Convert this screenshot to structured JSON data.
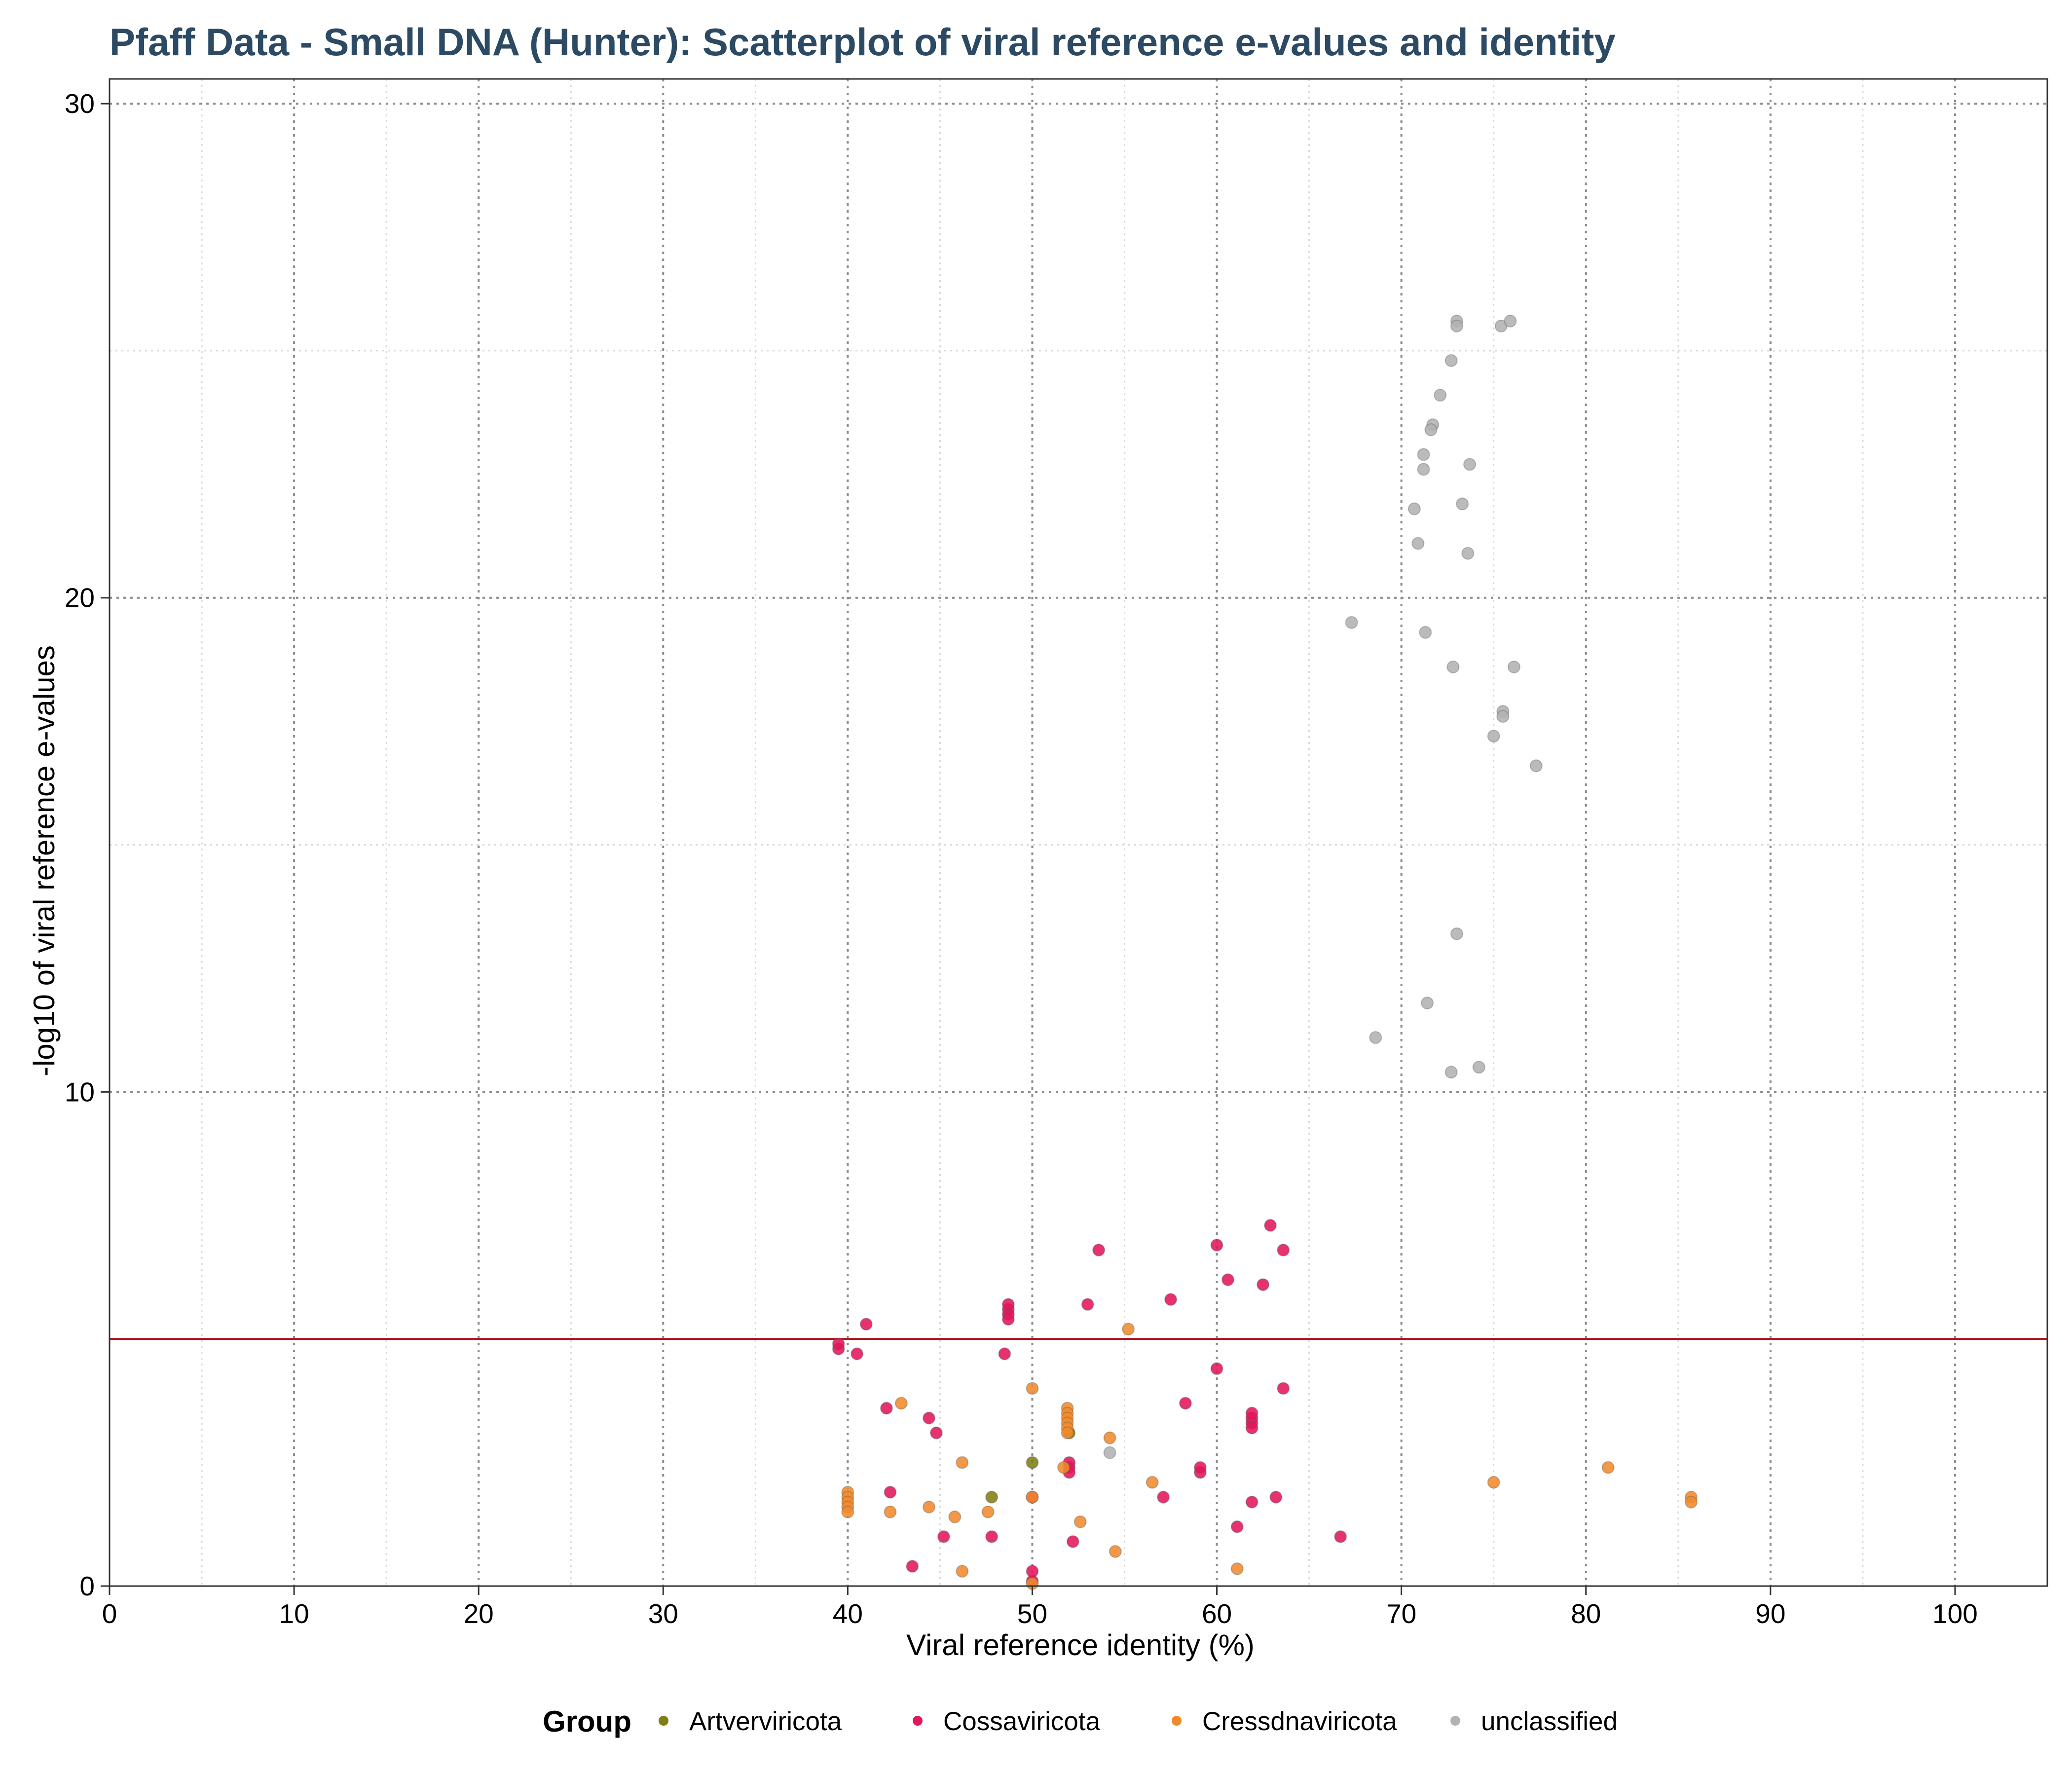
{
  "colors": {
    "title": "#2c4a63",
    "threshold": "#b0171f",
    "grid_major": "#8c8c8c",
    "grid_minor": "#dadada"
  },
  "chart_data": {
    "type": "scatter",
    "title": "Pfaff Data - Small DNA (Hunter): Scatterplot of viral reference e-values and identity",
    "xlabel": "Viral reference identity (%)",
    "ylabel": "-log10 of viral reference e-values",
    "xlim": [
      0,
      105
    ],
    "ylim": [
      0,
      30.5
    ],
    "x_ticks": [
      "0",
      "10",
      "20",
      "30",
      "40",
      "50",
      "60",
      "70",
      "80",
      "90",
      "100"
    ],
    "y_ticks": [
      "0",
      "10",
      "20",
      "30"
    ],
    "grid": true,
    "legend_position": "bottom",
    "legend_title": "Group",
    "threshold_y": 5,
    "series": [
      {
        "name": "Artverviricota",
        "color": "#7f7f12",
        "points": [
          [
            47.8,
            1.8
          ],
          [
            50,
            2.5
          ],
          [
            52,
            3.1
          ]
        ]
      },
      {
        "name": "Cossaviricota",
        "color": "#e2165b",
        "points": [
          [
            41,
            5.3
          ],
          [
            39.5,
            4.8
          ],
          [
            39.5,
            4.9
          ],
          [
            40.5,
            4.7
          ],
          [
            42.1,
            3.6
          ],
          [
            44.4,
            3.4
          ],
          [
            44.8,
            3.1
          ],
          [
            42.3,
            1.9
          ],
          [
            45.2,
            1
          ],
          [
            47.8,
            1
          ],
          [
            43.5,
            0.4
          ],
          [
            48.7,
            5.5
          ],
          [
            48.7,
            5.6
          ],
          [
            48.7,
            5.4
          ],
          [
            48.7,
            5.7
          ],
          [
            48.5,
            4.7
          ],
          [
            50,
            1.8
          ],
          [
            50,
            0.3
          ],
          [
            50,
            0.1
          ],
          [
            52,
            2.5
          ],
          [
            52,
            2.4
          ],
          [
            52,
            2.3
          ],
          [
            52.2,
            0.9
          ],
          [
            53,
            5.7
          ],
          [
            53.6,
            6.8
          ],
          [
            57.5,
            5.8
          ],
          [
            58.3,
            3.7
          ],
          [
            59.1,
            2.3
          ],
          [
            59.1,
            2.4
          ],
          [
            57.1,
            1.8
          ],
          [
            60,
            6.9
          ],
          [
            60.6,
            6.2
          ],
          [
            60,
            4.4
          ],
          [
            61.9,
            3.4
          ],
          [
            61.9,
            3.5
          ],
          [
            61.9,
            3.3
          ],
          [
            61.9,
            3.2
          ],
          [
            61.9,
            1.7
          ],
          [
            61.1,
            1.2
          ],
          [
            62.5,
            6.1
          ],
          [
            62.9,
            7.3
          ],
          [
            63.6,
            6.8
          ],
          [
            63.6,
            4
          ],
          [
            63.2,
            1.8
          ],
          [
            66.7,
            1
          ]
        ]
      },
      {
        "name": "Cressdnaviricota",
        "color": "#f08a2c",
        "points": [
          [
            40,
            1.9
          ],
          [
            40,
            1.8
          ],
          [
            40,
            1.7
          ],
          [
            40,
            1.6
          ],
          [
            40,
            1.5
          ],
          [
            42.9,
            3.7
          ],
          [
            42.3,
            1.5
          ],
          [
            44.4,
            1.6
          ],
          [
            45.8,
            1.4
          ],
          [
            46.2,
            2.5
          ],
          [
            46.2,
            0.3
          ],
          [
            47.6,
            1.5
          ],
          [
            50,
            4
          ],
          [
            50,
            1.8
          ],
          [
            50,
            0.05
          ],
          [
            51.7,
            2.4
          ],
          [
            51.9,
            3.6
          ],
          [
            51.9,
            3.5
          ],
          [
            51.9,
            3.4
          ],
          [
            51.9,
            3.3
          ],
          [
            51.9,
            3.2
          ],
          [
            51.9,
            3.1
          ],
          [
            52.6,
            1.3
          ],
          [
            54.2,
            3
          ],
          [
            54.5,
            0.7
          ],
          [
            55.2,
            5.2
          ],
          [
            56.5,
            2.1
          ],
          [
            61.1,
            0.35
          ],
          [
            75,
            2.1
          ],
          [
            81.2,
            2.4
          ],
          [
            85.7,
            1.8
          ],
          [
            85.7,
            1.7
          ]
        ]
      },
      {
        "name": "unclassified",
        "color": "#b2b2b2",
        "points": [
          [
            73,
            25.6
          ],
          [
            73,
            25.5
          ],
          [
            75.4,
            25.5
          ],
          [
            75.9,
            25.6
          ],
          [
            72.7,
            24.8
          ],
          [
            72.1,
            24.1
          ],
          [
            71.7,
            23.5
          ],
          [
            71.6,
            23.4
          ],
          [
            71.2,
            22.9
          ],
          [
            71.2,
            22.6
          ],
          [
            73.7,
            22.7
          ],
          [
            70.7,
            21.8
          ],
          [
            73.3,
            21.9
          ],
          [
            70.9,
            21.1
          ],
          [
            73.6,
            20.9
          ],
          [
            67.3,
            19.5
          ],
          [
            71.3,
            19.3
          ],
          [
            72.8,
            18.6
          ],
          [
            76.1,
            18.6
          ],
          [
            75.5,
            17.7
          ],
          [
            75.5,
            17.6
          ],
          [
            75,
            17.2
          ],
          [
            77.3,
            16.6
          ],
          [
            73,
            13.2
          ],
          [
            71.4,
            11.8
          ],
          [
            68.6,
            11.1
          ],
          [
            72.7,
            10.4
          ],
          [
            74.2,
            10.5
          ],
          [
            54.2,
            2.7
          ]
        ]
      }
    ]
  }
}
